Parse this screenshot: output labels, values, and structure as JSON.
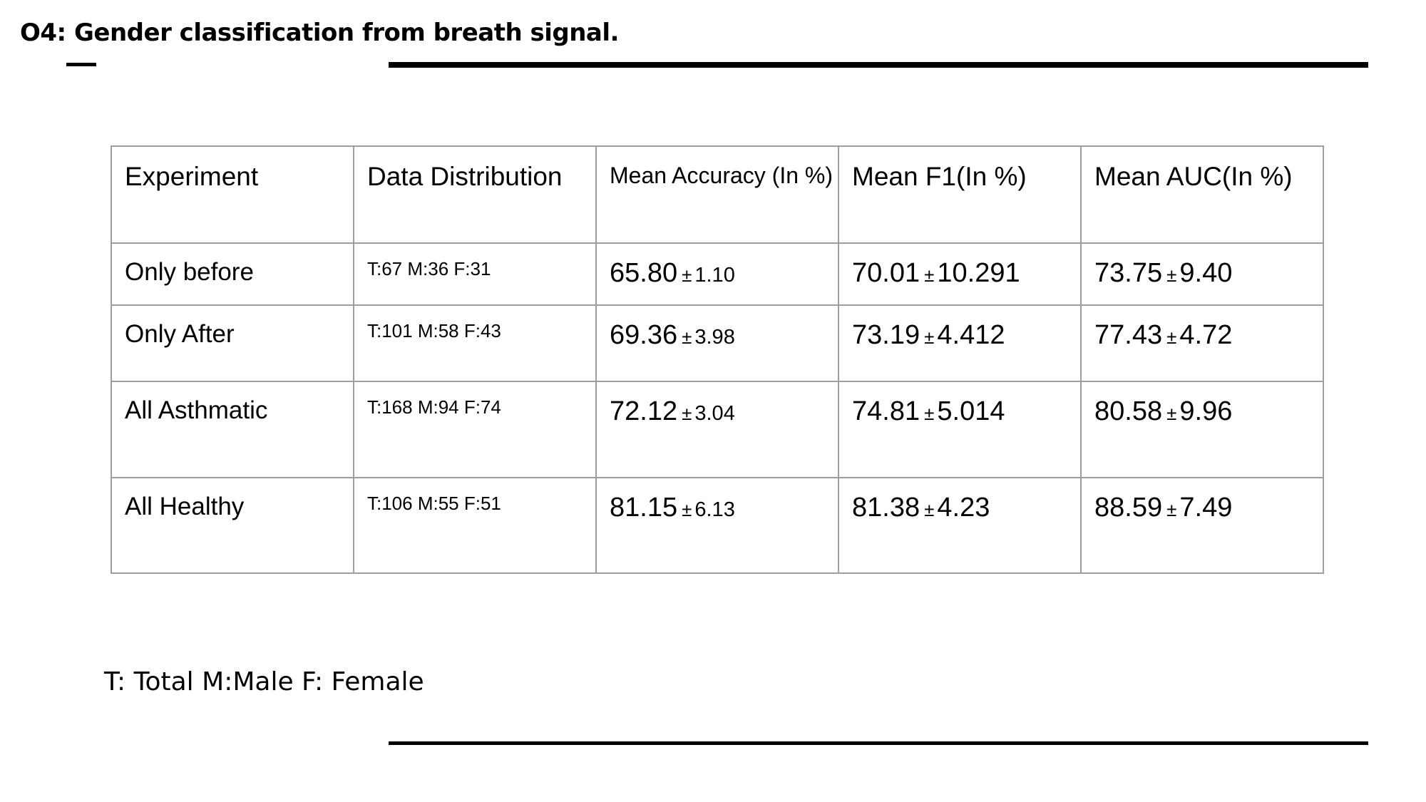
{
  "slide": {
    "title": "O4: Gender classification from breath signal."
  },
  "table": {
    "headers": {
      "experiment": "Experiment",
      "distribution": "Data Distribution",
      "accuracy": "Mean Accuracy (In %)",
      "f1": "Mean F1(In %)",
      "auc": "Mean AUC(In %)"
    },
    "rows": [
      {
        "experiment": "Only before",
        "distribution": "T:67 M:36 F:31",
        "accuracy_mean": "65.80",
        "accuracy_sd": "1.10",
        "f1_mean": "70.01",
        "f1_sd": "10.291",
        "auc_mean": "73.75",
        "auc_sd": "9.40"
      },
      {
        "experiment": "Only After",
        "distribution": "T:101 M:58 F:43",
        "accuracy_mean": "69.36",
        "accuracy_sd": "3.98",
        "f1_mean": "73.19",
        "f1_sd": "4.412",
        "auc_mean": "77.43",
        "auc_sd": "4.72"
      },
      {
        "experiment": "All Asthmatic",
        "distribution": "T:168 M:94 F:74",
        "accuracy_mean": "72.12",
        "accuracy_sd": "3.04",
        "f1_mean": "74.81",
        "f1_sd": "5.014",
        "auc_mean": "80.58",
        "auc_sd": "9.96"
      },
      {
        "experiment": "All Healthy",
        "distribution": "T:106 M:55 F:51",
        "accuracy_mean": "81.15",
        "accuracy_sd": "6.13",
        "f1_mean": "81.38",
        "f1_sd": "4.23",
        "auc_mean": "88.59",
        "auc_sd": "7.49"
      }
    ],
    "plus_minus": "±"
  },
  "legend": {
    "text": "T: Total M:Male F: Female"
  }
}
